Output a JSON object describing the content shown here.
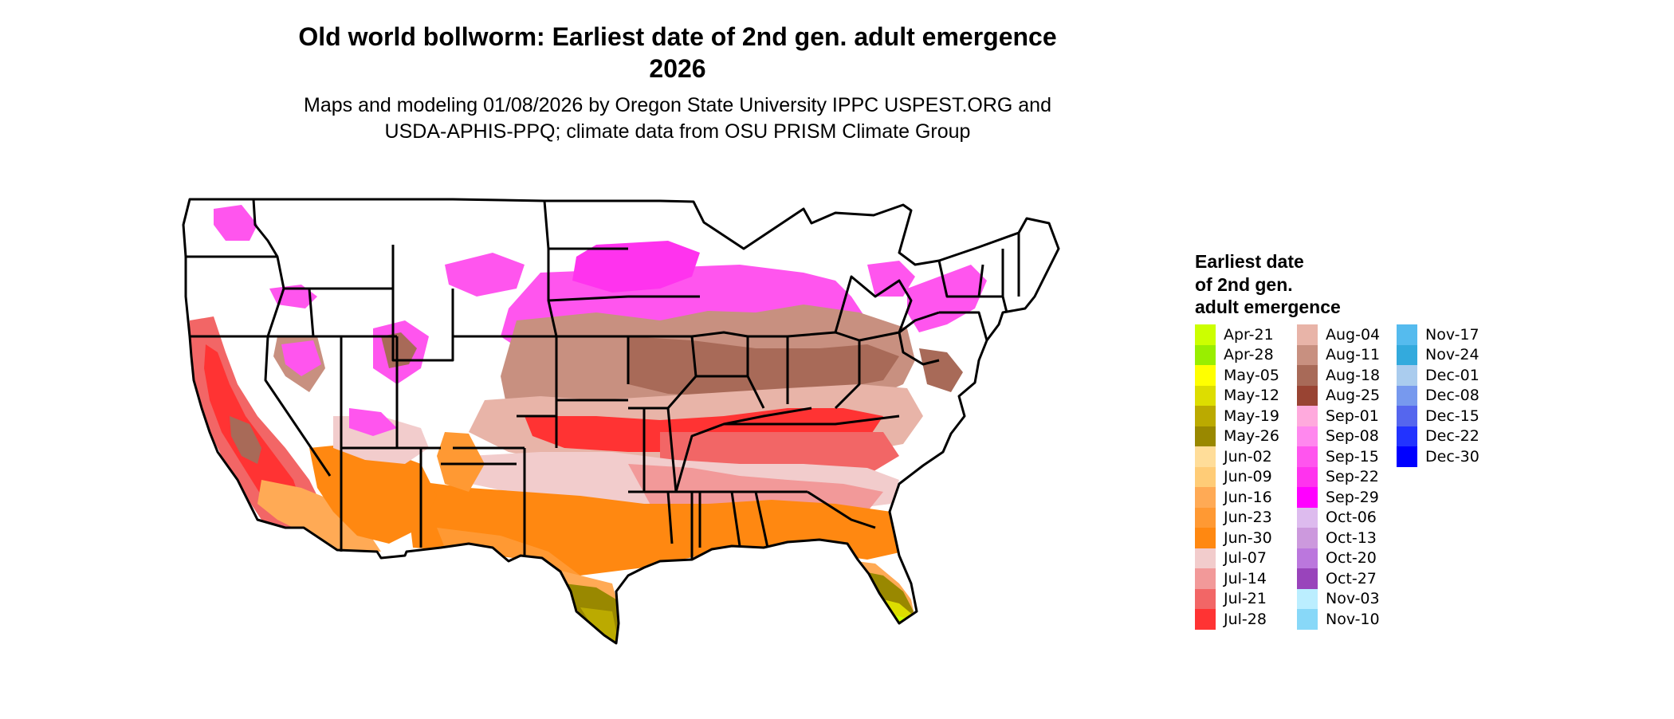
{
  "title": "Old world bollworm: Earliest date of 2nd gen. adult emergence",
  "year": "2026",
  "subtitle_line1": "Maps and modeling 01/08/2026 by Oregon State University IPPC USPEST.ORG and",
  "subtitle_line2": "USDA-APHIS-PPQ; climate data from OSU PRISM Climate Group",
  "legend": {
    "title_lines": [
      "Earliest date",
      "of 2nd gen.",
      "adult emergence"
    ],
    "columns": [
      [
        {
          "label": "Apr-21",
          "color": "#CCFF00"
        },
        {
          "label": "Apr-28",
          "color": "#99EE00"
        },
        {
          "label": "May-05",
          "color": "#FFFF00"
        },
        {
          "label": "May-12",
          "color": "#DDDD00"
        },
        {
          "label": "May-19",
          "color": "#BBAA00"
        },
        {
          "label": "May-26",
          "color": "#998800"
        },
        {
          "label": "Jun-02",
          "color": "#FFDD99"
        },
        {
          "label": "Jun-09",
          "color": "#FFCC77"
        },
        {
          "label": "Jun-16",
          "color": "#FFAA55"
        },
        {
          "label": "Jun-23",
          "color": "#FF9933"
        },
        {
          "label": "Jun-30",
          "color": "#FF8811"
        },
        {
          "label": "Jul-07",
          "color": "#F2CCCC"
        },
        {
          "label": "Jul-14",
          "color": "#F29999"
        },
        {
          "label": "Jul-21",
          "color": "#F26666"
        },
        {
          "label": "Jul-28",
          "color": "#FF3333"
        }
      ],
      [
        {
          "label": "Aug-04",
          "color": "#E8B4A8"
        },
        {
          "label": "Aug-11",
          "color": "#C89080"
        },
        {
          "label": "Aug-18",
          "color": "#A86A58"
        },
        {
          "label": "Aug-25",
          "color": "#994433"
        },
        {
          "label": "Sep-01",
          "color": "#FFAADD"
        },
        {
          "label": "Sep-08",
          "color": "#FF88EE"
        },
        {
          "label": "Sep-15",
          "color": "#FF55EE"
        },
        {
          "label": "Sep-22",
          "color": "#FF33EE"
        },
        {
          "label": "Sep-29",
          "color": "#FF00FF"
        },
        {
          "label": "Oct-06",
          "color": "#DDBBEE"
        },
        {
          "label": "Oct-13",
          "color": "#CC99DD"
        },
        {
          "label": "Oct-20",
          "color": "#BB77DD"
        },
        {
          "label": "Oct-27",
          "color": "#9944BB"
        },
        {
          "label": "Nov-03",
          "color": "#BBEEFF"
        },
        {
          "label": "Nov-10",
          "color": "#88D8F8"
        }
      ],
      [
        {
          "label": "Nov-17",
          "color": "#55BBEE"
        },
        {
          "label": "Nov-24",
          "color": "#33AADD"
        },
        {
          "label": "Dec-01",
          "color": "#AACCEE"
        },
        {
          "label": "Dec-08",
          "color": "#7799EE"
        },
        {
          "label": "Dec-15",
          "color": "#5566EE"
        },
        {
          "label": "Dec-22",
          "color": "#2233FF"
        },
        {
          "label": "Dec-30",
          "color": "#0000FF"
        }
      ]
    ]
  }
}
